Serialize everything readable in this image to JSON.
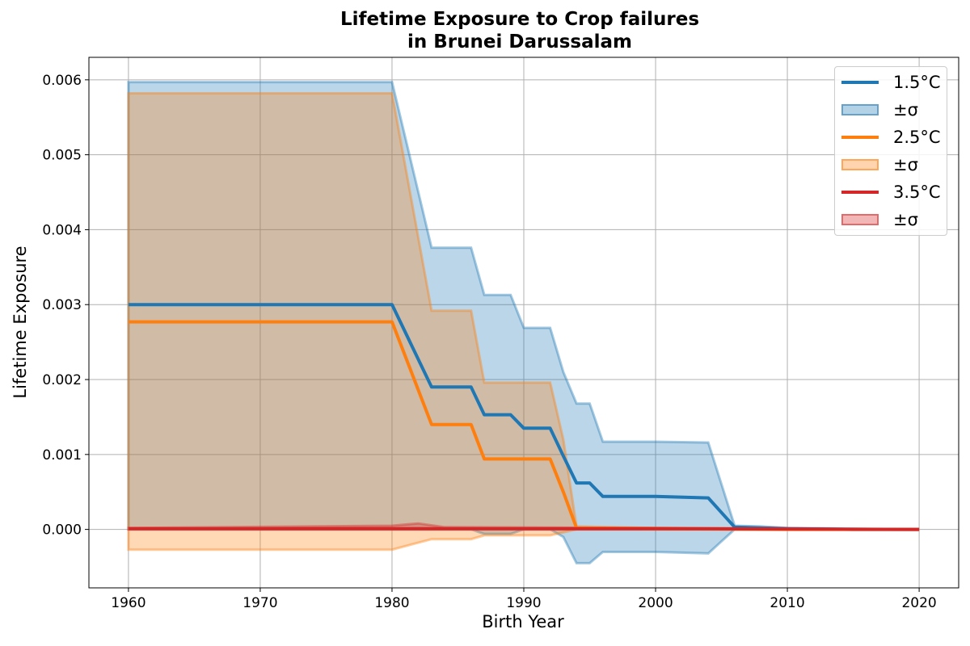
{
  "chart_data": {
    "type": "line",
    "title": "Lifetime Exposure to Crop failures\nin Brunei Darussalam",
    "xlabel": "Birth Year",
    "ylabel": "Lifetime Exposure",
    "xlim": [
      1957,
      2023
    ],
    "ylim": [
      -0.00078,
      0.0063
    ],
    "x_ticks": [
      1960,
      1970,
      1980,
      1990,
      2000,
      2010,
      2020
    ],
    "y_ticks": [
      0.0,
      0.001,
      0.002,
      0.003,
      0.004,
      0.005,
      0.006
    ],
    "x_tick_labels": [
      "1960",
      "1970",
      "1980",
      "1990",
      "2000",
      "2010",
      "2020"
    ],
    "y_tick_labels": [
      "0.000",
      "0.001",
      "0.002",
      "0.003",
      "0.004",
      "0.005",
      "0.006"
    ],
    "grid": true,
    "legend_position": "top-right",
    "series": [
      {
        "name": "1.5°C",
        "band_label": "±σ",
        "color": "#1f77b4",
        "x": [
          1960,
          1980,
          1983,
          1986,
          1987,
          1989,
          1990,
          1992,
          1993,
          1994,
          1995,
          1996,
          2000,
          2004,
          2006,
          2008,
          2010,
          2015,
          2020
        ],
        "mean": [
          0.003,
          0.003,
          0.0019,
          0.0019,
          0.00153,
          0.00153,
          0.00135,
          0.00135,
          0.00098,
          0.00062,
          0.00062,
          0.00044,
          0.00044,
          0.00042,
          3e-05,
          2e-05,
          1e-05,
          0.0,
          0.0
        ],
        "upper": [
          0.00597,
          0.00597,
          0.00376,
          0.00376,
          0.00313,
          0.00313,
          0.00269,
          0.00269,
          0.0021,
          0.00168,
          0.00168,
          0.00117,
          0.00117,
          0.00116,
          5e-05,
          4e-05,
          2e-05,
          1e-05,
          0.0
        ],
        "lower": [
          0.0,
          0.0,
          0.0,
          0.0,
          -6e-05,
          -6e-05,
          0.0,
          0.0,
          -0.0001,
          -0.00045,
          -0.00045,
          -0.0003,
          -0.0003,
          -0.00032,
          0.0,
          0.0,
          0.0,
          0.0,
          0.0
        ]
      },
      {
        "name": "2.5°C",
        "band_label": "±σ",
        "color": "#ff7f0e",
        "x": [
          1960,
          1980,
          1983,
          1986,
          1987,
          1989,
          1990,
          1992,
          1993,
          1994,
          2000,
          2010,
          2020
        ],
        "mean": [
          0.00277,
          0.00277,
          0.0014,
          0.0014,
          0.00094,
          0.00094,
          0.00094,
          0.00094,
          0.0005,
          2e-05,
          1e-05,
          0.0,
          0.0
        ],
        "upper": [
          0.00582,
          0.00582,
          0.00292,
          0.00292,
          0.00196,
          0.00196,
          0.00196,
          0.00196,
          0.0012,
          4e-05,
          2e-05,
          1e-05,
          0.0
        ],
        "lower": [
          -0.00027,
          -0.00027,
          -0.00013,
          -0.00013,
          -8e-05,
          -8e-05,
          -8e-05,
          -8e-05,
          -4e-05,
          0.0,
          0.0,
          0.0,
          0.0
        ]
      },
      {
        "name": "3.5°C",
        "band_label": "±σ",
        "color": "#d62728",
        "x": [
          1960,
          1980,
          1982,
          1984,
          2000,
          2020
        ],
        "mean": [
          1e-05,
          1e-05,
          1e-05,
          1e-05,
          1e-05,
          0.0
        ],
        "upper": [
          2e-05,
          5e-05,
          8e-05,
          3e-05,
          2e-05,
          0.0
        ],
        "lower": [
          0.0,
          0.0,
          0.0,
          0.0,
          0.0,
          0.0
        ]
      }
    ]
  }
}
